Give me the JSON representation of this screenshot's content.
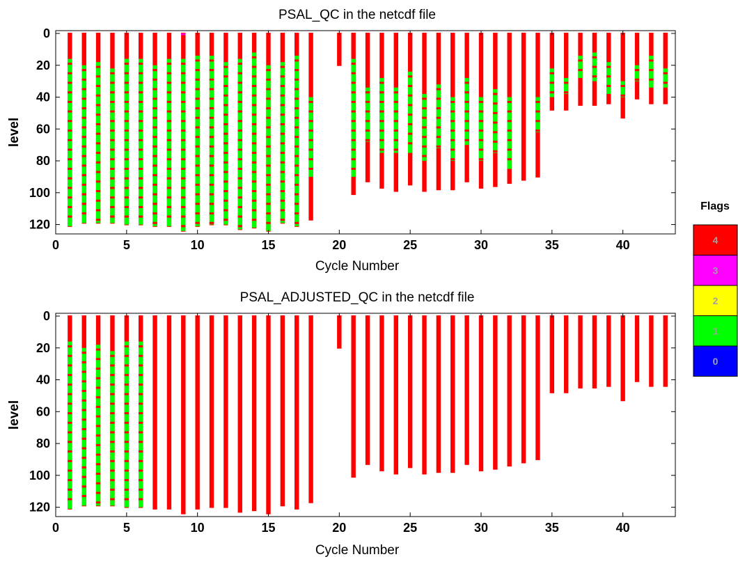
{
  "chart_data": [
    {
      "type": "scatter",
      "title": "PSAL_QC  in the netcdf file",
      "xlabel": "Cycle Number",
      "ylabel": "level",
      "xlim": [
        0,
        43.7
      ],
      "ylim": [
        125,
        0
      ],
      "y_reversed": true,
      "xticks": [
        0,
        5,
        10,
        15,
        20,
        25,
        30,
        35,
        40
      ],
      "yticks": [
        0,
        20,
        40,
        60,
        80,
        100,
        120
      ],
      "grid": false,
      "cycles": [
        1,
        2,
        3,
        4,
        5,
        6,
        7,
        8,
        9,
        10,
        11,
        12,
        13,
        14,
        15,
        16,
        17,
        18,
        20,
        21,
        22,
        23,
        24,
        25,
        26,
        27,
        28,
        29,
        30,
        31,
        32,
        33,
        34,
        35,
        36,
        37,
        38,
        39,
        40,
        41,
        42,
        43
      ],
      "max_level": [
        121,
        119,
        119,
        119,
        120,
        120,
        121,
        121,
        124,
        121,
        120,
        120,
        123,
        122,
        124,
        119,
        121,
        117,
        20,
        101,
        93,
        97,
        99,
        95,
        99,
        98,
        98,
        93,
        97,
        96,
        94,
        92,
        90,
        48,
        48,
        45,
        45,
        44,
        53,
        41,
        44,
        44
      ],
      "profiles": [
        {
          "cycle": 1,
          "segments": [
            [
              0,
              16,
              4
            ],
            [
              16,
              121,
              1
            ]
          ]
        },
        {
          "cycle": 2,
          "segments": [
            [
              0,
              20,
              4
            ],
            [
              20,
              119,
              1
            ]
          ]
        },
        {
          "cycle": 3,
          "segments": [
            [
              0,
              18,
              4
            ],
            [
              18,
              119,
              1
            ]
          ]
        },
        {
          "cycle": 4,
          "segments": [
            [
              0,
              22,
              4
            ],
            [
              22,
              119,
              1
            ]
          ]
        },
        {
          "cycle": 5,
          "segments": [
            [
              0,
              16,
              4
            ],
            [
              16,
              120,
              1
            ]
          ]
        },
        {
          "cycle": 6,
          "segments": [
            [
              0,
              16,
              4
            ],
            [
              16,
              120,
              1
            ]
          ]
        },
        {
          "cycle": 7,
          "segments": [
            [
              0,
              20,
              4
            ],
            [
              20,
              121,
              1
            ]
          ]
        },
        {
          "cycle": 8,
          "segments": [
            [
              0,
              16,
              4
            ],
            [
              16,
              121,
              1
            ]
          ]
        },
        {
          "cycle": 9,
          "segments": [
            [
              0,
              1,
              3
            ],
            [
              1,
              16,
              4
            ],
            [
              16,
              124,
              1
            ]
          ]
        },
        {
          "cycle": 10,
          "segments": [
            [
              0,
              14,
              4
            ],
            [
              14,
              121,
              1
            ]
          ]
        },
        {
          "cycle": 11,
          "segments": [
            [
              0,
              14,
              4
            ],
            [
              14,
              120,
              1
            ]
          ]
        },
        {
          "cycle": 12,
          "segments": [
            [
              0,
              18,
              4
            ],
            [
              18,
              120,
              1
            ]
          ]
        },
        {
          "cycle": 13,
          "segments": [
            [
              0,
              16,
              4
            ],
            [
              16,
              123,
              1
            ]
          ]
        },
        {
          "cycle": 14,
          "segments": [
            [
              0,
              12,
              4
            ],
            [
              12,
              122,
              1
            ]
          ]
        },
        {
          "cycle": 15,
          "segments": [
            [
              0,
              20,
              4
            ],
            [
              20,
              124,
              1
            ]
          ]
        },
        {
          "cycle": 16,
          "segments": [
            [
              0,
              18,
              4
            ],
            [
              18,
              119,
              1
            ]
          ]
        },
        {
          "cycle": 17,
          "segments": [
            [
              0,
              14,
              4
            ],
            [
              14,
              121,
              1
            ]
          ]
        },
        {
          "cycle": 18,
          "segments": [
            [
              0,
              40,
              4
            ],
            [
              40,
              90,
              1
            ],
            [
              90,
              117,
              4
            ]
          ]
        },
        {
          "cycle": 20,
          "segments": [
            [
              0,
              20,
              4
            ]
          ]
        },
        {
          "cycle": 21,
          "segments": [
            [
              0,
              16,
              4
            ],
            [
              16,
              90,
              1
            ],
            [
              90,
              101,
              4
            ]
          ]
        },
        {
          "cycle": 22,
          "segments": [
            [
              0,
              34,
              4
            ],
            [
              34,
              68,
              1
            ],
            [
              68,
              93,
              4
            ]
          ]
        },
        {
          "cycle": 23,
          "segments": [
            [
              0,
              28,
              4
            ],
            [
              28,
              75,
              1
            ],
            [
              75,
              97,
              4
            ]
          ]
        },
        {
          "cycle": 24,
          "segments": [
            [
              0,
              34,
              4
            ],
            [
              34,
              75,
              1
            ],
            [
              75,
              99,
              4
            ]
          ]
        },
        {
          "cycle": 25,
          "segments": [
            [
              0,
              24,
              4
            ],
            [
              24,
              75,
              1
            ],
            [
              75,
              95,
              4
            ]
          ]
        },
        {
          "cycle": 26,
          "segments": [
            [
              0,
              38,
              4
            ],
            [
              38,
              80,
              1
            ],
            [
              80,
              99,
              4
            ]
          ]
        },
        {
          "cycle": 27,
          "segments": [
            [
              0,
              32,
              4
            ],
            [
              32,
              72,
              1
            ],
            [
              72,
              98,
              4
            ]
          ]
        },
        {
          "cycle": 28,
          "segments": [
            [
              0,
              40,
              4
            ],
            [
              40,
              80,
              1
            ],
            [
              80,
              98,
              4
            ]
          ]
        },
        {
          "cycle": 29,
          "segments": [
            [
              0,
              28,
              4
            ],
            [
              28,
              70,
              1
            ],
            [
              70,
              93,
              4
            ]
          ]
        },
        {
          "cycle": 30,
          "segments": [
            [
              0,
              40,
              4
            ],
            [
              40,
              80,
              1
            ],
            [
              80,
              97,
              4
            ]
          ]
        },
        {
          "cycle": 31,
          "segments": [
            [
              0,
              35,
              4
            ],
            [
              35,
              75,
              1
            ],
            [
              75,
              96,
              4
            ]
          ]
        },
        {
          "cycle": 32,
          "segments": [
            [
              0,
              40,
              4
            ],
            [
              40,
              85,
              1
            ],
            [
              85,
              94,
              4
            ]
          ]
        },
        {
          "cycle": 33,
          "segments": [
            [
              0,
              92,
              4
            ]
          ]
        },
        {
          "cycle": 34,
          "segments": [
            [
              0,
              40,
              4
            ],
            [
              40,
              62,
              1
            ],
            [
              62,
              90,
              4
            ]
          ]
        },
        {
          "cycle": 35,
          "segments": [
            [
              0,
              22,
              4
            ],
            [
              22,
              40,
              1
            ],
            [
              40,
              48,
              4
            ]
          ]
        },
        {
          "cycle": 36,
          "segments": [
            [
              0,
              28,
              4
            ],
            [
              28,
              38,
              1
            ],
            [
              38,
              48,
              4
            ]
          ]
        },
        {
          "cycle": 37,
          "segments": [
            [
              0,
              14,
              4
            ],
            [
              14,
              28,
              1
            ],
            [
              28,
              45,
              4
            ]
          ]
        },
        {
          "cycle": 38,
          "segments": [
            [
              0,
              12,
              4
            ],
            [
              12,
              30,
              1
            ],
            [
              30,
              45,
              4
            ]
          ]
        },
        {
          "cycle": 39,
          "segments": [
            [
              0,
              18,
              4
            ],
            [
              18,
              38,
              1
            ],
            [
              38,
              44,
              4
            ]
          ]
        },
        {
          "cycle": 40,
          "segments": [
            [
              0,
              30,
              4
            ],
            [
              30,
              40,
              1
            ],
            [
              40,
              53,
              4
            ]
          ]
        },
        {
          "cycle": 41,
          "segments": [
            [
              0,
              20,
              4
            ],
            [
              20,
              30,
              1
            ],
            [
              30,
              41,
              4
            ]
          ]
        },
        {
          "cycle": 42,
          "segments": [
            [
              0,
              14,
              4
            ],
            [
              14,
              34,
              1
            ],
            [
              34,
              44,
              4
            ]
          ]
        },
        {
          "cycle": 43,
          "segments": [
            [
              0,
              22,
              4
            ],
            [
              22,
              34,
              1
            ],
            [
              34,
              44,
              4
            ]
          ]
        }
      ]
    },
    {
      "type": "scatter",
      "title": "PSAL_ADJUSTED_QC  in the netcdf file",
      "xlabel": "Cycle Number",
      "ylabel": "level",
      "xlim": [
        0,
        43.7
      ],
      "ylim": [
        125,
        0
      ],
      "y_reversed": true,
      "xticks": [
        0,
        5,
        10,
        15,
        20,
        25,
        30,
        35,
        40
      ],
      "yticks": [
        0,
        20,
        40,
        60,
        80,
        100,
        120
      ],
      "grid": false,
      "cycles": [
        1,
        2,
        3,
        4,
        5,
        6,
        7,
        8,
        9,
        10,
        11,
        12,
        13,
        14,
        15,
        16,
        17,
        18,
        20,
        21,
        22,
        23,
        24,
        25,
        26,
        27,
        28,
        29,
        30,
        31,
        32,
        33,
        34,
        35,
        36,
        37,
        38,
        39,
        40,
        41,
        42,
        43
      ],
      "max_level": [
        121,
        119,
        119,
        119,
        120,
        120,
        121,
        121,
        124,
        121,
        120,
        120,
        123,
        122,
        124,
        119,
        121,
        117,
        20,
        101,
        93,
        97,
        99,
        95,
        99,
        98,
        98,
        93,
        97,
        96,
        94,
        92,
        90,
        48,
        48,
        45,
        45,
        44,
        53,
        41,
        44,
        44
      ],
      "profiles": [
        {
          "cycle": 1,
          "segments": [
            [
              0,
              16,
              4
            ],
            [
              16,
              121,
              1
            ]
          ]
        },
        {
          "cycle": 2,
          "segments": [
            [
              0,
              20,
              4
            ],
            [
              20,
              119,
              1
            ]
          ]
        },
        {
          "cycle": 3,
          "segments": [
            [
              0,
              18,
              4
            ],
            [
              18,
              119,
              1
            ]
          ]
        },
        {
          "cycle": 4,
          "segments": [
            [
              0,
              22,
              4
            ],
            [
              22,
              119,
              1
            ]
          ]
        },
        {
          "cycle": 5,
          "segments": [
            [
              0,
              16,
              4
            ],
            [
              16,
              120,
              1
            ]
          ]
        },
        {
          "cycle": 6,
          "segments": [
            [
              0,
              16,
              4
            ],
            [
              16,
              120,
              1
            ]
          ]
        }
      ],
      "default_flag": 4
    }
  ],
  "legend": {
    "title": "Flags",
    "items": [
      {
        "value": "4",
        "color": "#ff0000"
      },
      {
        "value": "3",
        "color": "#ff00ff"
      },
      {
        "value": "2",
        "color": "#ffff00"
      },
      {
        "value": "1",
        "color": "#00ff00"
      },
      {
        "value": "0",
        "color": "#0000ff"
      }
    ]
  },
  "flag_colors": {
    "4": "#ff0000",
    "3": "#ff00ff",
    "2": "#ffff00",
    "1": "#00ff00",
    "0": "#0000ff"
  }
}
